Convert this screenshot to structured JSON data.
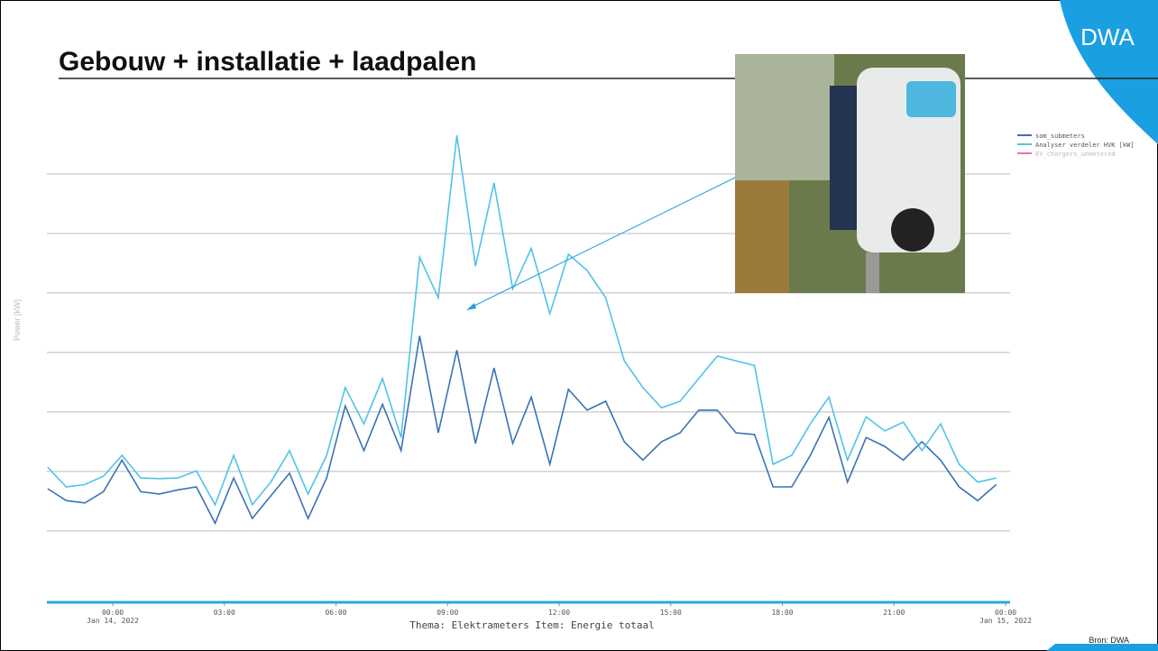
{
  "chart_data": {
    "type": "line",
    "title": "Gebouw + installatie + laadpalen",
    "ylabel": "Power [kW]",
    "xlabel": "Thema: Elektrameters Item:  Energie totaal",
    "source": "Bron: DWA",
    "logo": "DWA",
    "x": [
      -1.75,
      -1.25,
      -0.75,
      -0.25,
      0.25,
      0.75,
      1.25,
      1.75,
      2.25,
      2.75,
      3.25,
      3.75,
      4.25,
      4.75,
      5.25,
      5.75,
      6.25,
      6.75,
      7.25,
      7.75,
      8.25,
      8.75,
      9.25,
      9.75,
      10.25,
      10.75,
      11.25,
      11.75,
      12.25,
      12.75,
      13.25,
      13.75,
      14.25,
      14.75,
      15.25,
      15.75,
      16.25,
      16.75,
      17.25,
      17.75,
      18.25,
      18.75,
      19.25,
      19.75,
      20.25,
      20.75,
      21.25,
      21.75,
      22.25,
      22.75,
      23.25,
      23.75
    ],
    "series": [
      {
        "name": "som_submeters",
        "color": "#3a73b5",
        "values": [
          1.71,
          1.51,
          1.47,
          1.66,
          2.19,
          1.66,
          1.62,
          1.69,
          1.74,
          1.13,
          1.89,
          1.21,
          1.59,
          1.97,
          1.21,
          1.89,
          3.1,
          2.35,
          3.13,
          2.35,
          4.28,
          2.65,
          4.04,
          2.47,
          3.74,
          2.47,
          3.25,
          2.12,
          3.38,
          3.03,
          3.18,
          2.5,
          2.19,
          2.5,
          2.65,
          3.03,
          3.03,
          2.65,
          2.62,
          1.74,
          1.74,
          2.27,
          2.91,
          1.82,
          2.57,
          2.42,
          2.19,
          2.5,
          2.19,
          1.74,
          1.51,
          1.78
        ]
      },
      {
        "name": "Analyser verdeler HVK [kW]",
        "color": "#4fc3e8",
        "values": [
          2.07,
          1.74,
          1.78,
          1.92,
          2.27,
          1.89,
          1.88,
          1.89,
          2.01,
          1.44,
          2.27,
          1.44,
          1.82,
          2.35,
          1.62,
          2.27,
          3.41,
          2.8,
          3.56,
          2.57,
          5.6,
          4.92,
          7.65,
          5.45,
          6.85,
          5.07,
          5.75,
          4.65,
          5.65,
          5.38,
          4.92,
          3.86,
          3.41,
          3.07,
          3.18,
          3.56,
          3.94,
          3.86,
          3.78,
          2.12,
          2.27,
          2.8,
          3.25,
          2.19,
          2.92,
          2.68,
          2.83,
          2.35,
          2.8,
          2.12,
          1.82,
          1.89
        ]
      },
      {
        "name": "EV_chargers_unmetered",
        "color": "#f06cc0",
        "values": [
          null,
          null,
          null,
          null,
          null,
          null,
          null,
          null,
          null,
          null,
          null,
          null,
          null,
          null,
          null,
          null,
          null,
          null,
          null,
          null,
          null,
          null,
          null,
          null,
          null,
          null,
          null,
          null,
          null,
          null,
          null,
          null,
          null,
          null,
          null,
          null,
          null,
          null,
          null,
          null,
          null,
          null,
          null,
          null,
          null,
          null,
          null,
          null,
          null,
          null,
          null,
          null
        ]
      }
    ],
    "xlim": [
      -1.77,
      24.12
    ],
    "xticks": [
      {
        "value": 0,
        "label": "00:00",
        "sub": "Jan 14, 2022"
      },
      {
        "value": 3,
        "label": "03:00"
      },
      {
        "value": 6,
        "label": "06:00"
      },
      {
        "value": 9,
        "label": "09:00"
      },
      {
        "value": 12,
        "label": "12:00"
      },
      {
        "value": 15,
        "label": "15:00"
      },
      {
        "value": 18,
        "label": "18:00"
      },
      {
        "value": 21,
        "label": "21:00"
      },
      {
        "value": 24,
        "label": "00:00",
        "sub": "Jan 15, 2022"
      }
    ],
    "ylim": [
      -0.2,
      8
    ],
    "yticks": [
      1,
      2,
      3,
      4,
      5,
      6,
      7
    ],
    "grid": true,
    "legend": "top-right"
  }
}
